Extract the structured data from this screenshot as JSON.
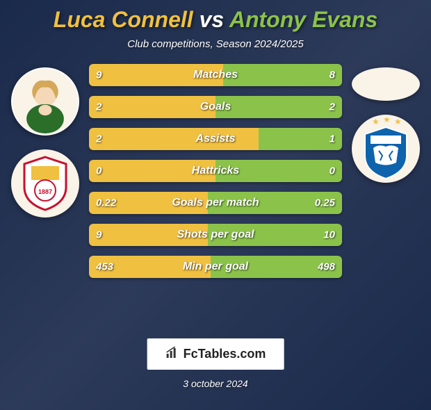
{
  "title": {
    "player1": "Luca Connell",
    "vs": "vs",
    "player2": "Antony Evans"
  },
  "subtitle": "Club competitions, Season 2024/2025",
  "colors": {
    "p1": "#f0c040",
    "p2": "#8bc34a",
    "bg1": "#1a2a4a",
    "bg2": "#2d3a5a",
    "text_shadow": "rgba(0,0,0,0.5)"
  },
  "stats": [
    {
      "label": "Matches",
      "v1": "9",
      "v2": "8",
      "pct1": 53
    },
    {
      "label": "Goals",
      "v1": "2",
      "v2": "2",
      "pct1": 50
    },
    {
      "label": "Assists",
      "v1": "2",
      "v2": "1",
      "pct1": 67
    },
    {
      "label": "Hattricks",
      "v1": "0",
      "v2": "0",
      "pct1": 50
    },
    {
      "label": "Goals per match",
      "v1": "0.22",
      "v2": "0.25",
      "pct1": 47
    },
    {
      "label": "Shots per goal",
      "v1": "9",
      "v2": "10",
      "pct1": 47
    },
    {
      "label": "Min per goal",
      "v1": "453",
      "v2": "498",
      "pct1": 48
    }
  ],
  "player1": {
    "avatar_alt": "player1-avatar",
    "crest_alt": "barnsley-crest",
    "crest_primary": "#c8102e",
    "crest_text": "1887"
  },
  "player2": {
    "avatar_alt": "player2-avatar",
    "crest_alt": "huddersfield-crest",
    "crest_primary": "#0e63ad"
  },
  "footer": {
    "brand": "FcTables.com",
    "date": "3 october 2024"
  }
}
